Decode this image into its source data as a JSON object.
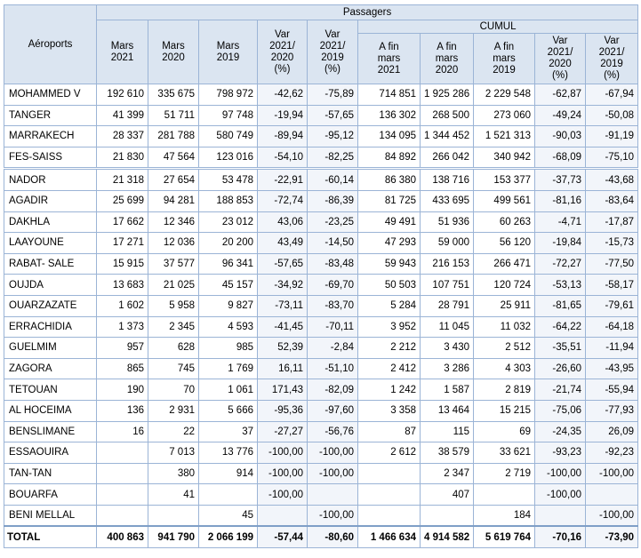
{
  "table": {
    "header": {
      "airport_label": "Aéroports",
      "passagers_label": "Passagers",
      "cumul_label": "CUMUL",
      "columns": [
        "Mars\n2021",
        "Mars\n2020",
        "Mars\n2019",
        "Var\n2021/\n2020\n(%)",
        "Var\n2021/\n2019\n(%)",
        "A fin\nmars\n2021",
        "A fin\nmars\n2020",
        "A fin\nmars\n2019",
        "Var\n2021/\n2020\n(%)",
        "Var\n2021/\n2019\n(%)"
      ]
    },
    "rows": [
      {
        "airport": "MOHAMMED V",
        "values": [
          "192 610",
          "335 675",
          "798 972",
          "-42,62",
          "-75,89",
          "714 851",
          "1 925 286",
          "2 229 548",
          "-62,87",
          "-67,94"
        ]
      },
      {
        "airport": "TANGER",
        "values": [
          "41 399",
          "51 711",
          "97 748",
          "-19,94",
          "-57,65",
          "136 302",
          "268 500",
          "273 060",
          "-49,24",
          "-50,08"
        ]
      },
      {
        "airport": "MARRAKECH",
        "values": [
          "28 337",
          "281 788",
          "580 749",
          "-89,94",
          "-95,12",
          "134 095",
          "1 344 452",
          "1 521 313",
          "-90,03",
          "-91,19"
        ]
      },
      {
        "airport": "FES-SAISS",
        "values": [
          "21 830",
          "47 564",
          "123 016",
          "-54,10",
          "-82,25",
          "84 892",
          "266 042",
          "340 942",
          "-68,09",
          "-75,10"
        ]
      },
      {
        "airport": "NADOR",
        "values": [
          "21 318",
          "27 654",
          "53 478",
          "-22,91",
          "-60,14",
          "86 380",
          "138 716",
          "153 377",
          "-37,73",
          "-43,68"
        ]
      },
      {
        "airport": "AGADIR",
        "values": [
          "25 699",
          "94 281",
          "188 853",
          "-72,74",
          "-86,39",
          "81 725",
          "433 695",
          "499 561",
          "-81,16",
          "-83,64"
        ]
      },
      {
        "airport": "DAKHLA",
        "values": [
          "17 662",
          "12 346",
          "23 012",
          "43,06",
          "-23,25",
          "49 491",
          "51 936",
          "60 263",
          "-4,71",
          "-17,87"
        ]
      },
      {
        "airport": "LAAYOUNE",
        "values": [
          "17 271",
          "12 036",
          "20 200",
          "43,49",
          "-14,50",
          "47 293",
          "59 000",
          "56 120",
          "-19,84",
          "-15,73"
        ]
      },
      {
        "airport": "RABAT- SALE",
        "values": [
          "15 915",
          "37 577",
          "96 341",
          "-57,65",
          "-83,48",
          "59 943",
          "216 153",
          "266 471",
          "-72,27",
          "-77,50"
        ]
      },
      {
        "airport": "OUJDA",
        "values": [
          "13 683",
          "21 025",
          "45 157",
          "-34,92",
          "-69,70",
          "50 503",
          "107 751",
          "120 724",
          "-53,13",
          "-58,17"
        ]
      },
      {
        "airport": "OUARZAZATE",
        "values": [
          "1 602",
          "5 958",
          "9 827",
          "-73,11",
          "-83,70",
          "5 284",
          "28 791",
          "25 911",
          "-81,65",
          "-79,61"
        ]
      },
      {
        "airport": "ERRACHIDIA",
        "values": [
          "1 373",
          "2 345",
          "4 593",
          "-41,45",
          "-70,11",
          "3 952",
          "11 045",
          "11 032",
          "-64,22",
          "-64,18"
        ]
      },
      {
        "airport": "GUELMIM",
        "values": [
          "957",
          "628",
          "985",
          "52,39",
          "-2,84",
          "2 212",
          "3 430",
          "2 512",
          "-35,51",
          "-11,94"
        ]
      },
      {
        "airport": "ZAGORA",
        "values": [
          "865",
          "745",
          "1 769",
          "16,11",
          "-51,10",
          "2 412",
          "3 286",
          "4 303",
          "-26,60",
          "-43,95"
        ]
      },
      {
        "airport": "TETOUAN",
        "values": [
          "190",
          "70",
          "1 061",
          "171,43",
          "-82,09",
          "1 242",
          "1 587",
          "2 819",
          "-21,74",
          "-55,94"
        ]
      },
      {
        "airport": "AL HOCEIMA",
        "values": [
          "136",
          "2 931",
          "5 666",
          "-95,36",
          "-97,60",
          "3 358",
          "13 464",
          "15 215",
          "-75,06",
          "-77,93"
        ]
      },
      {
        "airport": "BENSLIMANE",
        "values": [
          "16",
          "22",
          "37",
          "-27,27",
          "-56,76",
          "87",
          "115",
          "69",
          "-24,35",
          "26,09"
        ]
      },
      {
        "airport": "ESSAOUIRA",
        "values": [
          null,
          "7 013",
          "13 776",
          "-100,00",
          "-100,00",
          "2 612",
          "38 579",
          "33 621",
          "-93,23",
          "-92,23"
        ]
      },
      {
        "airport": "TAN-TAN",
        "values": [
          null,
          "380",
          "914",
          "-100,00",
          "-100,00",
          null,
          "2 347",
          "2 719",
          "-100,00",
          "-100,00"
        ]
      },
      {
        "airport": "BOUARFA",
        "values": [
          null,
          "41",
          null,
          "-100,00",
          null,
          null,
          "407",
          null,
          "-100,00",
          null
        ]
      },
      {
        "airport": "BENI MELLAL",
        "values": [
          null,
          null,
          "45",
          null,
          "-100,00",
          null,
          null,
          "184",
          null,
          "-100,00"
        ]
      }
    ],
    "total": {
      "label": "TOTAL",
      "values": [
        "400 863",
        "941 790",
        "2 066 199",
        "-57,44",
        "-80,60",
        "1 466 634",
        "4 914 582",
        "5 619 764",
        "-70,16",
        "-73,90"
      ]
    }
  }
}
